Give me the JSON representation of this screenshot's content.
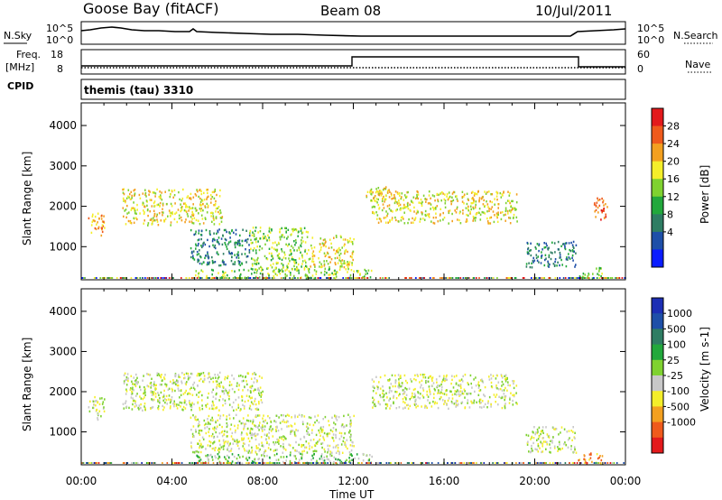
{
  "header": {
    "station": "Goose Bay (fitACF)",
    "beam": "Beam 08",
    "date": "10/Jul/2011"
  },
  "noise_panel": {
    "left_label": "N.Sky",
    "right_label": "N.Search",
    "left_ticks": [
      "10^5",
      "10^0"
    ],
    "right_ticks": [
      "10^5",
      "10^0"
    ]
  },
  "freq_panel": {
    "left_label_1": "Freq.",
    "left_label_2": "[MHz]",
    "left_ticks": [
      "18",
      "8"
    ],
    "right_label": "Nave",
    "right_ticks": [
      "60",
      "0"
    ]
  },
  "cpid_panel": {
    "label": "CPID",
    "program": "themis (tau) 3310"
  },
  "time_axis": {
    "label": "Time UT",
    "ticks": [
      "00:00",
      "04:00",
      "08:00",
      "12:00",
      "16:00",
      "20:00",
      "00:00"
    ]
  },
  "chart_data": [
    {
      "type": "heatmap",
      "title": "Power",
      "ylabel": "Slant Range [km]",
      "xlabel": "",
      "y_ticks": [
        1000,
        2000,
        3000,
        4000
      ],
      "ylim": [
        180,
        4560
      ],
      "xlim_hours": [
        0,
        24
      ],
      "colorbar": {
        "label": "Power [dB]",
        "ticks": [
          "4",
          "8",
          "12",
          "16",
          "20",
          "24",
          "28"
        ],
        "colors": [
          "#0a1cff",
          "#1e4fa8",
          "#2e7d63",
          "#22a83c",
          "#7fd230",
          "#f4ee2a",
          "#f3a020",
          "#ef5a1c",
          "#e31a1c"
        ]
      },
      "regions": [
        {
          "t0": 0.3,
          "t1": 1.0,
          "r0": 1300,
          "r1": 1900,
          "level": 2
        },
        {
          "t0": 1.8,
          "t1": 6.2,
          "r0": 1550,
          "r1": 2450,
          "level": 3
        },
        {
          "t0": 4.8,
          "t1": 7.4,
          "r0": 550,
          "r1": 1450,
          "level": 6
        },
        {
          "t0": 7.4,
          "t1": 10.0,
          "r0": 450,
          "r1": 1500,
          "level": 4
        },
        {
          "t0": 10.0,
          "t1": 12.0,
          "r0": 500,
          "r1": 1300,
          "level": 3
        },
        {
          "t0": 5.0,
          "t1": 12.8,
          "r0": 230,
          "r1": 480,
          "level": 4
        },
        {
          "t0": 12.5,
          "t1": 14.0,
          "r0": 2150,
          "r1": 2500,
          "level": 3
        },
        {
          "t0": 12.8,
          "t1": 19.2,
          "r0": 1600,
          "r1": 2400,
          "level": 3
        },
        {
          "t0": 19.6,
          "t1": 21.8,
          "r0": 500,
          "r1": 1150,
          "level": 6
        },
        {
          "t0": 21.9,
          "t1": 23.0,
          "r0": 230,
          "r1": 500,
          "level": 4
        },
        {
          "t0": 22.6,
          "t1": 23.2,
          "r0": 1600,
          "r1": 2250,
          "level": 1
        }
      ]
    },
    {
      "type": "heatmap",
      "title": "Velocity",
      "ylabel": "Slant Range [km]",
      "xlabel": "Time UT",
      "y_ticks": [
        1000,
        2000,
        3000,
        4000
      ],
      "ylim": [
        180,
        4560
      ],
      "xlim_hours": [
        0,
        24
      ],
      "colorbar": {
        "label": "Velocity [m s-1]",
        "ticks": [
          "1000",
          "500",
          "100",
          "25",
          "-25",
          "-100",
          "-500",
          "-1000"
        ],
        "colors": [
          "#1c2eb4",
          "#1e4fa8",
          "#2e7d63",
          "#22a83c",
          "#7fd230",
          "#c8c8c8",
          "#f4ee2a",
          "#f3a020",
          "#ef5a1c",
          "#e31a1c"
        ]
      },
      "regions": [
        {
          "t0": 0.3,
          "t1": 1.0,
          "r0": 1300,
          "r1": 1900,
          "level": 5
        },
        {
          "t0": 1.8,
          "t1": 8.0,
          "r0": 1550,
          "r1": 2500,
          "level": 5
        },
        {
          "t0": 4.8,
          "t1": 12.0,
          "r0": 500,
          "r1": 1450,
          "level": 5
        },
        {
          "t0": 5.0,
          "t1": 12.8,
          "r0": 230,
          "r1": 480,
          "level": 4
        },
        {
          "t0": 12.8,
          "t1": 19.2,
          "r0": 1600,
          "r1": 2450,
          "level": 5
        },
        {
          "t0": 19.6,
          "t1": 21.8,
          "r0": 500,
          "r1": 1150,
          "level": 5
        },
        {
          "t0": 21.9,
          "t1": 23.0,
          "r0": 230,
          "r1": 500,
          "level": 7
        }
      ]
    }
  ]
}
